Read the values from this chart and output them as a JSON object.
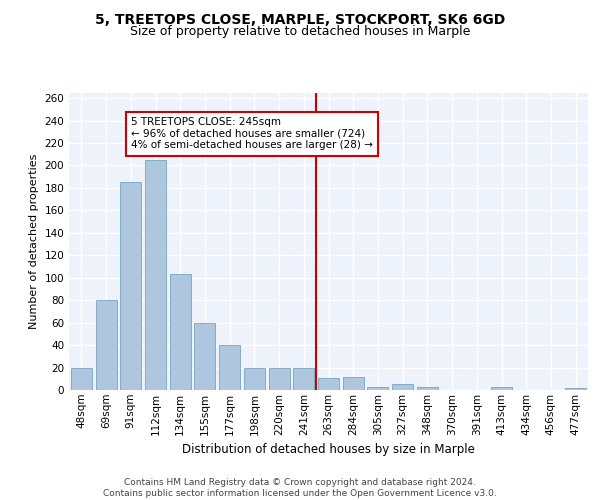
{
  "title1": "5, TREETOPS CLOSE, MARPLE, STOCKPORT, SK6 6GD",
  "title2": "Size of property relative to detached houses in Marple",
  "xlabel": "Distribution of detached houses by size in Marple",
  "ylabel": "Number of detached properties",
  "categories": [
    "48sqm",
    "69sqm",
    "91sqm",
    "112sqm",
    "134sqm",
    "155sqm",
    "177sqm",
    "198sqm",
    "220sqm",
    "241sqm",
    "263sqm",
    "284sqm",
    "305sqm",
    "327sqm",
    "348sqm",
    "370sqm",
    "391sqm",
    "413sqm",
    "434sqm",
    "456sqm",
    "477sqm"
  ],
  "values": [
    20,
    80,
    185,
    205,
    103,
    60,
    40,
    20,
    20,
    20,
    11,
    12,
    3,
    5,
    3,
    0,
    0,
    3,
    0,
    0,
    2
  ],
  "bar_color": "#aec6de",
  "bar_edge_color": "#6699bb",
  "background_color": "#eef2fa",
  "grid_color": "#ffffff",
  "vline_x_index": 9.5,
  "vline_color": "#cc0000",
  "annotation_text": "5 TREETOPS CLOSE: 245sqm\n← 96% of detached houses are smaller (724)\n4% of semi-detached houses are larger (28) →",
  "annotation_box_color": "#ffffff",
  "annotation_box_edge": "#cc0000",
  "footer_text": "Contains HM Land Registry data © Crown copyright and database right 2024.\nContains public sector information licensed under the Open Government Licence v3.0.",
  "ylim": [
    0,
    265
  ],
  "yticks": [
    0,
    20,
    40,
    60,
    80,
    100,
    120,
    140,
    160,
    180,
    200,
    220,
    240,
    260
  ],
  "title1_fontsize": 10,
  "title2_fontsize": 9,
  "xlabel_fontsize": 8.5,
  "ylabel_fontsize": 8,
  "tick_fontsize": 7.5,
  "annotation_fontsize": 7.5,
  "footer_fontsize": 6.5
}
